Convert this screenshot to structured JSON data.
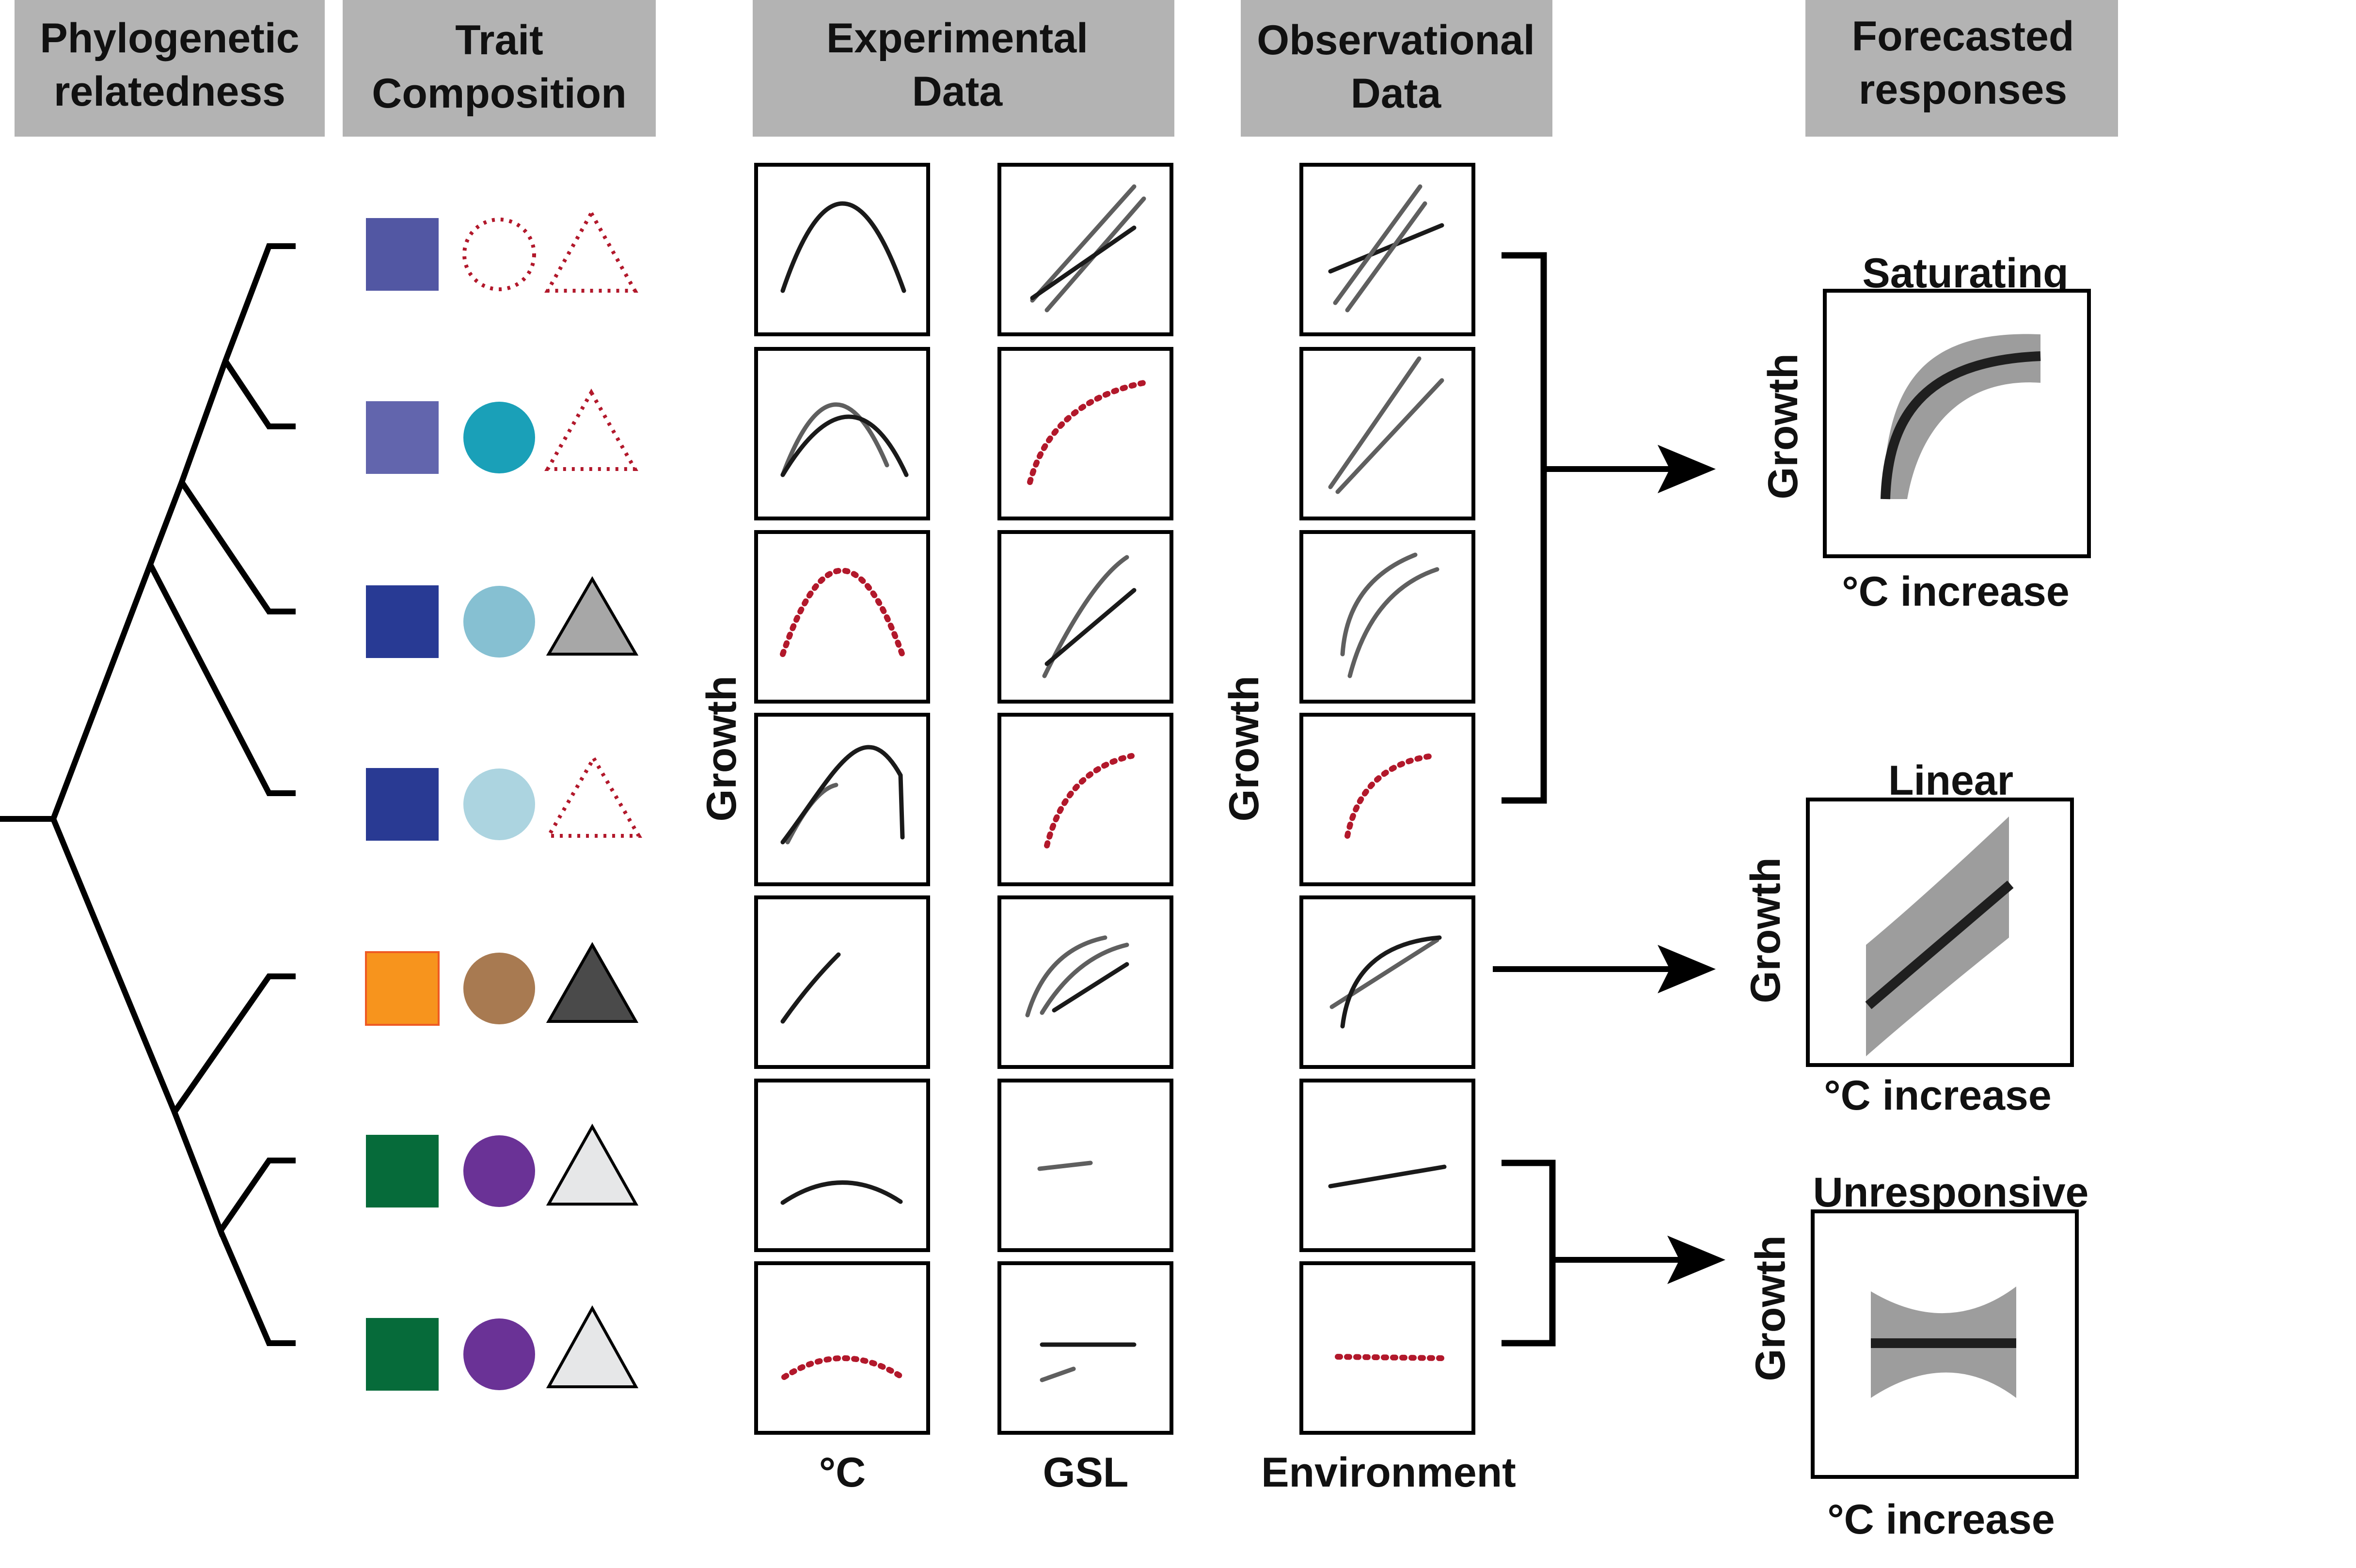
{
  "headers": {
    "phylogeny": [
      "Phylogenetic",
      "relatedness"
    ],
    "traits": [
      "Trait",
      "Composition"
    ],
    "experimental": [
      "Experimental",
      "Data"
    ],
    "observational": [
      "Observational",
      "Data"
    ],
    "forecast": [
      "Forecasted",
      "responses"
    ]
  },
  "axis_labels": {
    "experimental_y": "Growth",
    "observational_y": "Growth",
    "temp_x": "°C",
    "gsl_x": "GSL",
    "env_x": "Environment"
  },
  "forecasts": [
    {
      "title": "Saturating",
      "ylabel": "Growth",
      "xlabel": "°C increase"
    },
    {
      "title": "Linear",
      "ylabel": "Growth",
      "xlabel": "°C increase"
    },
    {
      "title": "Unresponsive",
      "ylabel": "Growth",
      "xlabel": "°C increase"
    }
  ],
  "colors": {
    "header_fill": "#b3b3b3",
    "band_fill": "#8c8c8c",
    "dotted_red": "#b2182b"
  },
  "species": [
    {
      "square": "#5257a3",
      "circle": "outline",
      "triangle": "outline"
    },
    {
      "square": "#6265ad",
      "circle": "#1aa0b8",
      "triangle": "outline"
    },
    {
      "square": "#283a94",
      "circle": "#86c0d2",
      "triangle": "#a7a7a7"
    },
    {
      "square": "#293a93",
      "circle": "#acd4e0",
      "triangle": "outline"
    },
    {
      "square": "#f7941d",
      "circle": "#a87a51",
      "triangle": "#4a4a4a"
    },
    {
      "square": "#066b3a",
      "circle": "#6a3296",
      "triangle": "#e6e7e8"
    },
    {
      "square": "#066b3a",
      "circle": "#6a3296",
      "triangle": "#e6e7e8"
    }
  ]
}
